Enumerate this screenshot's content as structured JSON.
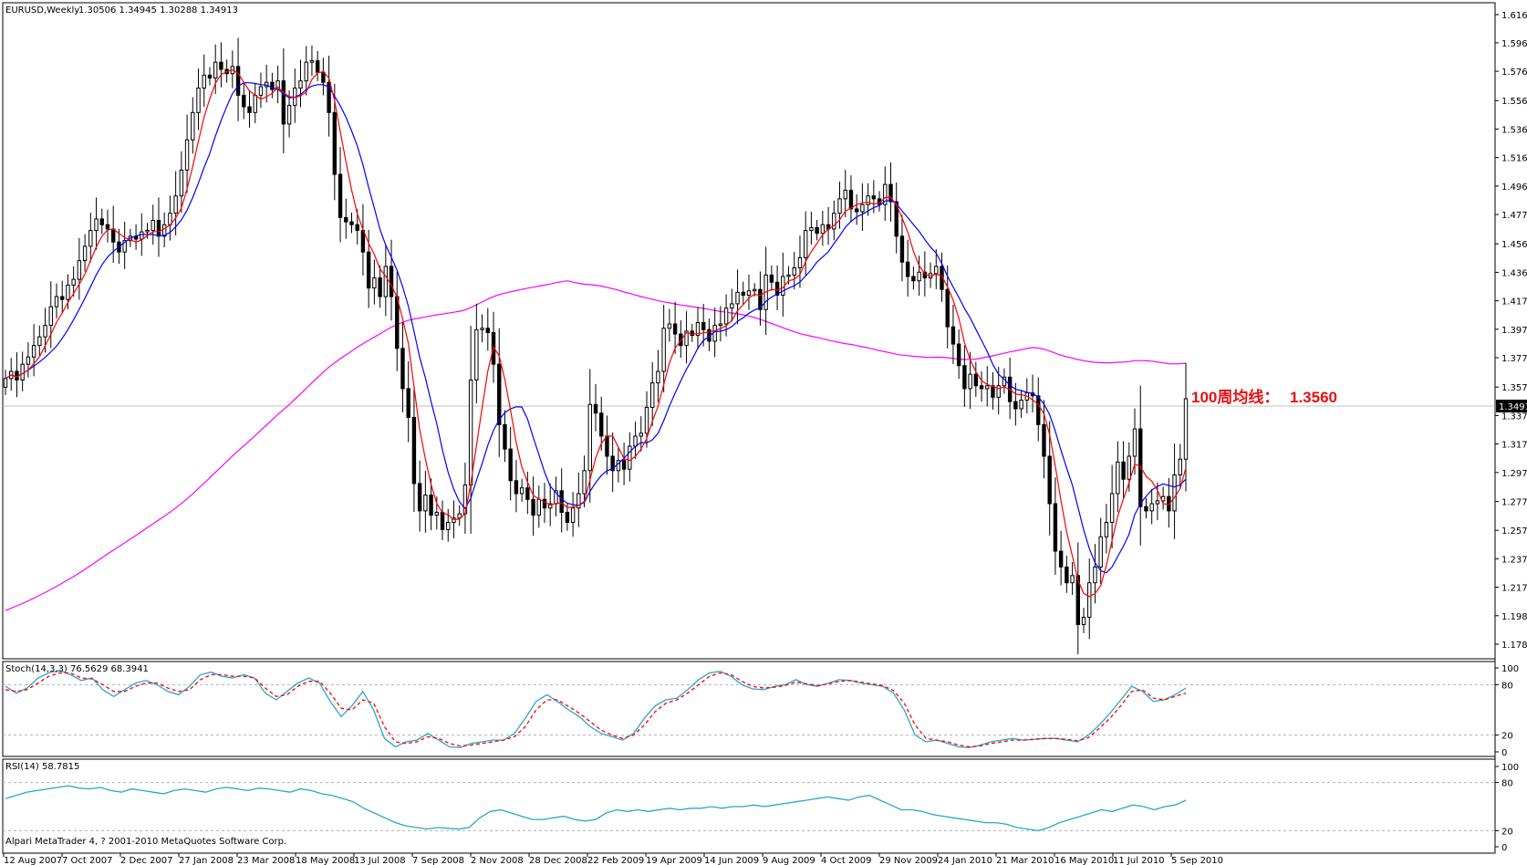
{
  "chart_data": [
    {
      "type": "candlestick",
      "title": "EURUSD,Weekly",
      "ohlc_header": "1.30506 1.34945 1.30288 1.34913",
      "current_price_label": "1.34913",
      "annotation": {
        "text": "100周均线：",
        "value": "1.3560"
      },
      "ylim": [
        1.1783,
        1.6161
      ],
      "y_ticks": [
        "1.61610",
        "1.59650",
        "1.57670",
        "1.55630",
        "1.53650",
        "1.51670",
        "1.49690",
        "1.47710",
        "1.45670",
        "1.43690",
        "1.41710",
        "1.39730",
        "1.37750",
        "1.35710",
        "1.33730",
        "1.31750",
        "1.29770",
        "1.27750",
        "1.25750",
        "1.23770",
        "1.21790",
        "1.19810",
        "1.17830"
      ],
      "x_ticks": [
        "12 Aug 2007",
        "7 Oct 2007",
        "2 Dec 2007",
        "27 Jan 2008",
        "23 Mar 2008",
        "18 May 2008",
        "13 Jul 2008",
        "7 Sep 2008",
        "2 Nov 2008",
        "28 Dec 2008",
        "22 Feb 2009",
        "19 Apr 2009",
        "14 Jun 2009",
        "9 Aug 2009",
        "4 Oct 2009",
        "29 Nov 2009",
        "24 Jan 2010",
        "21 Mar 2010",
        "16 May 2010",
        "11 Jul 2010",
        "5 Sep 2010"
      ],
      "colors": {
        "ma_fast": "#ff0000",
        "ma_slow": "#0000ff",
        "ma_100": "#ff00ff",
        "candle": "#000000"
      },
      "closes": [
        1.363,
        1.368,
        1.362,
        1.373,
        1.378,
        1.386,
        1.392,
        1.4,
        1.413,
        1.42,
        1.418,
        1.428,
        1.432,
        1.445,
        1.455,
        1.466,
        1.474,
        1.47,
        1.467,
        1.458,
        1.451,
        1.459,
        1.462,
        1.46,
        1.465,
        1.466,
        1.473,
        1.462,
        1.47,
        1.478,
        1.49,
        1.508,
        1.529,
        1.548,
        1.565,
        1.574,
        1.572,
        1.583,
        1.578,
        1.575,
        1.58,
        1.56,
        1.552,
        1.548,
        1.56,
        1.566,
        1.569,
        1.564,
        1.57,
        1.54,
        1.553,
        1.565,
        1.57,
        1.583,
        1.584,
        1.576,
        1.569,
        1.548,
        1.505,
        1.475,
        1.472,
        1.47,
        1.466,
        1.451,
        1.426,
        1.433,
        1.42,
        1.441,
        1.42,
        1.384,
        1.356,
        1.336,
        1.29,
        1.271,
        1.282,
        1.268,
        1.27,
        1.258,
        1.263,
        1.266,
        1.269,
        1.289,
        1.362,
        1.397,
        1.398,
        1.395,
        1.373,
        1.331,
        1.314,
        1.292,
        1.283,
        1.287,
        1.279,
        1.268,
        1.279,
        1.273,
        1.276,
        1.285,
        1.27,
        1.263,
        1.273,
        1.283,
        1.299,
        1.345,
        1.339,
        1.323,
        1.309,
        1.299,
        1.306,
        1.3,
        1.316,
        1.323,
        1.325,
        1.343,
        1.36,
        1.368,
        1.398,
        1.401,
        1.394,
        1.386,
        1.396,
        1.393,
        1.402,
        1.397,
        1.389,
        1.4,
        1.401,
        1.412,
        1.415,
        1.423,
        1.421,
        1.424,
        1.425,
        1.411,
        1.435,
        1.43,
        1.421,
        1.434,
        1.435,
        1.44,
        1.447,
        1.466,
        1.468,
        1.464,
        1.47,
        1.467,
        1.478,
        1.488,
        1.494,
        1.481,
        1.479,
        1.484,
        1.49,
        1.488,
        1.484,
        1.498,
        1.486,
        1.462,
        1.444,
        1.434,
        1.431,
        1.437,
        1.433,
        1.436,
        1.441,
        1.425,
        1.399,
        1.387,
        1.372,
        1.356,
        1.366,
        1.358,
        1.356,
        1.358,
        1.35,
        1.358,
        1.364,
        1.347,
        1.342,
        1.348,
        1.353,
        1.351,
        1.331,
        1.309,
        1.276,
        1.243,
        1.232,
        1.221,
        1.226,
        1.192,
        1.197,
        1.221,
        1.232,
        1.253,
        1.263,
        1.283,
        1.305,
        1.293,
        1.309,
        1.328,
        1.274,
        1.271,
        1.276,
        1.278,
        1.281,
        1.271,
        1.296,
        1.307,
        1.349
      ]
    },
    {
      "type": "line",
      "title": "Stoch(14,3,3) 76.5629 68.3941",
      "ylim": [
        0,
        100
      ],
      "y_ticks": [
        "100",
        "80",
        "20",
        "0"
      ],
      "series": [
        {
          "color": "#2aa7c9",
          "values": [
            78,
            70,
            76,
            88,
            94,
            97,
            92,
            85,
            88,
            74,
            66,
            74,
            82,
            85,
            80,
            72,
            68,
            78,
            92,
            95,
            90,
            88,
            92,
            88,
            70,
            62,
            72,
            82,
            88,
            82,
            60,
            42,
            55,
            72,
            50,
            16,
            6,
            12,
            14,
            22,
            14,
            6,
            5,
            10,
            12,
            14,
            14,
            22,
            40,
            60,
            68,
            60,
            50,
            42,
            30,
            22,
            18,
            14,
            22,
            40,
            55,
            62,
            64,
            74,
            86,
            94,
            96,
            90,
            80,
            75,
            74,
            78,
            80,
            86,
            80,
            78,
            82,
            86,
            85,
            82,
            80,
            78,
            70,
            50,
            20,
            12,
            14,
            10,
            6,
            5,
            8,
            12,
            14,
            16,
            14,
            15,
            16,
            16,
            14,
            12,
            20,
            32,
            46,
            62,
            78,
            72,
            60,
            62,
            68,
            76
          ]
        },
        {
          "color": "#ff0000",
          "dashed": true,
          "values": [
            74,
            72,
            74,
            82,
            90,
            94,
            94,
            88,
            87,
            80,
            72,
            72,
            78,
            82,
            82,
            76,
            72,
            74,
            86,
            92,
            92,
            90,
            90,
            88,
            76,
            66,
            68,
            78,
            84,
            84,
            70,
            52,
            50,
            62,
            58,
            30,
            12,
            10,
            12,
            18,
            16,
            10,
            7,
            8,
            10,
            12,
            14,
            18,
            30,
            50,
            62,
            62,
            54,
            46,
            36,
            26,
            20,
            16,
            20,
            32,
            48,
            58,
            62,
            70,
            80,
            90,
            94,
            92,
            84,
            78,
            76,
            77,
            79,
            83,
            81,
            79,
            81,
            84,
            85,
            83,
            81,
            79,
            73,
            58,
            32,
            16,
            14,
            12,
            8,
            6,
            7,
            10,
            12,
            14,
            14,
            15,
            16,
            16,
            15,
            13,
            17,
            28,
            40,
            55,
            72,
            74,
            64,
            62,
            66,
            70
          ]
        }
      ]
    },
    {
      "type": "line",
      "title": "RSI(14) 58.7815",
      "ylim": [
        0,
        100
      ],
      "y_ticks": [
        "100",
        "80",
        "20",
        "0"
      ],
      "series": [
        {
          "color": "#2aa7c9",
          "values": [
            60,
            64,
            68,
            70,
            72,
            74,
            76,
            73,
            72,
            74,
            70,
            68,
            72,
            70,
            68,
            66,
            70,
            72,
            70,
            68,
            72,
            74,
            72,
            70,
            73,
            72,
            70,
            68,
            72,
            70,
            66,
            64,
            60,
            56,
            48,
            42,
            36,
            30,
            26,
            24,
            22,
            24,
            23,
            22,
            24,
            36,
            44,
            46,
            42,
            38,
            34,
            34,
            36,
            38,
            34,
            32,
            34,
            42,
            46,
            44,
            46,
            44,
            46,
            48,
            46,
            48,
            48,
            50,
            48,
            50,
            50,
            52,
            50,
            52,
            54,
            56,
            58,
            60,
            62,
            60,
            58,
            62,
            64,
            58,
            52,
            46,
            46,
            44,
            40,
            38,
            36,
            34,
            32,
            30,
            30,
            28,
            24,
            22,
            20,
            24,
            30,
            34,
            38,
            42,
            46,
            44,
            48,
            52,
            50,
            46,
            50,
            52,
            58
          ]
        }
      ]
    }
  ],
  "footer": "Alpari MetaTrader 4, ? 2001-2010 MetaQuotes Software Corp."
}
